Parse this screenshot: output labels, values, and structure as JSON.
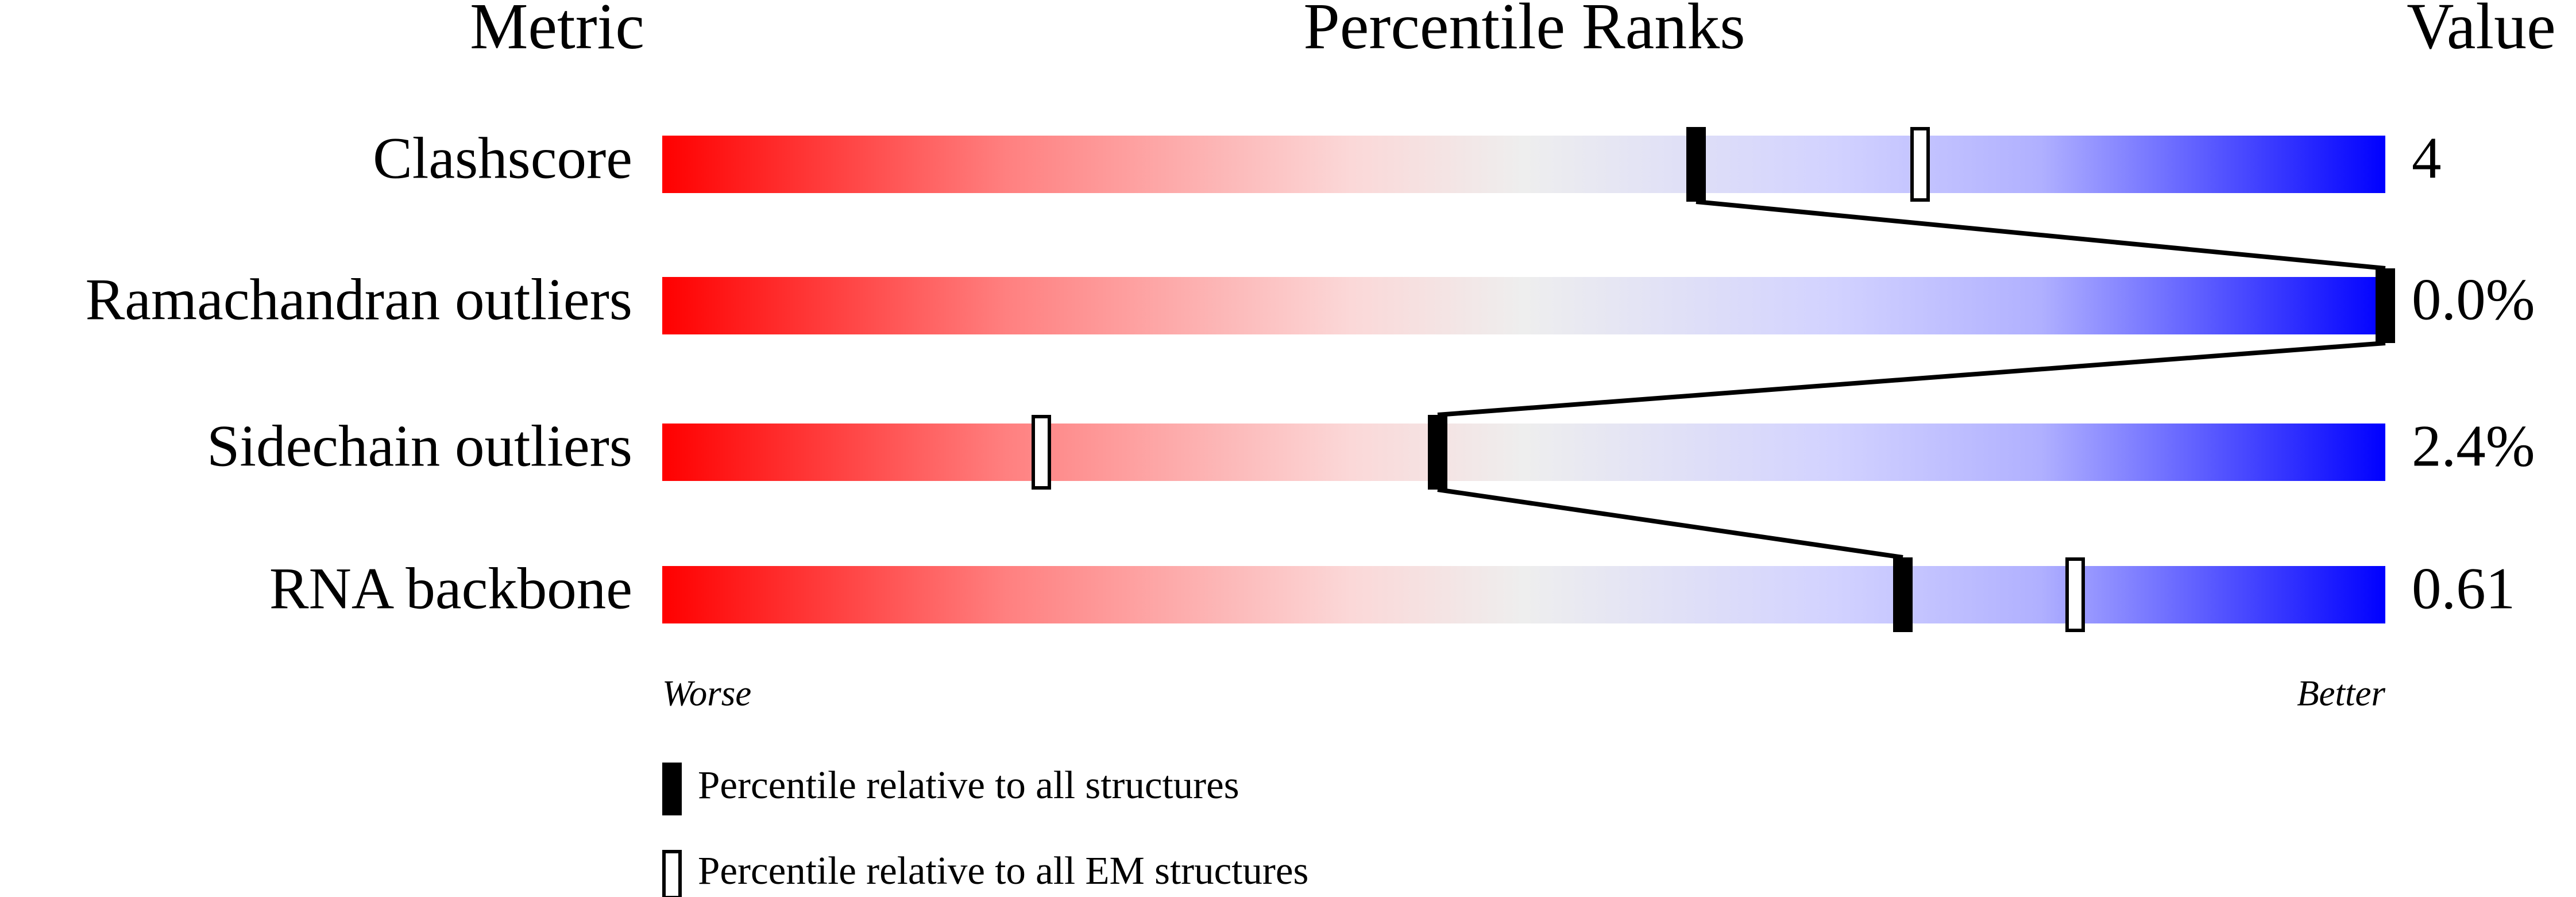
{
  "chart_data": {
    "type": "slider",
    "headers": [
      "Metric",
      "Percentile Ranks",
      "Value"
    ],
    "categories": [
      "Clashscore",
      "Ramachandran outliers",
      "Sidechain outliers",
      "RNA backbone"
    ],
    "series": [
      {
        "name": "Percentile relative to all structures",
        "color": "#000000",
        "values": [
          60,
          100,
          45,
          72
        ]
      },
      {
        "name": "Percentile relative to all EM structures",
        "color": "#000000",
        "values": [
          73,
          null,
          22,
          82
        ]
      }
    ],
    "values": [
      4,
      0.0,
      2.4,
      0.61
    ],
    "value_labels": [
      "4",
      "0.0%",
      "2.4%",
      "0.61"
    ],
    "xlim": [
      0,
      100
    ],
    "x_label_low": "Worse",
    "x_label_high": "Better"
  }
}
